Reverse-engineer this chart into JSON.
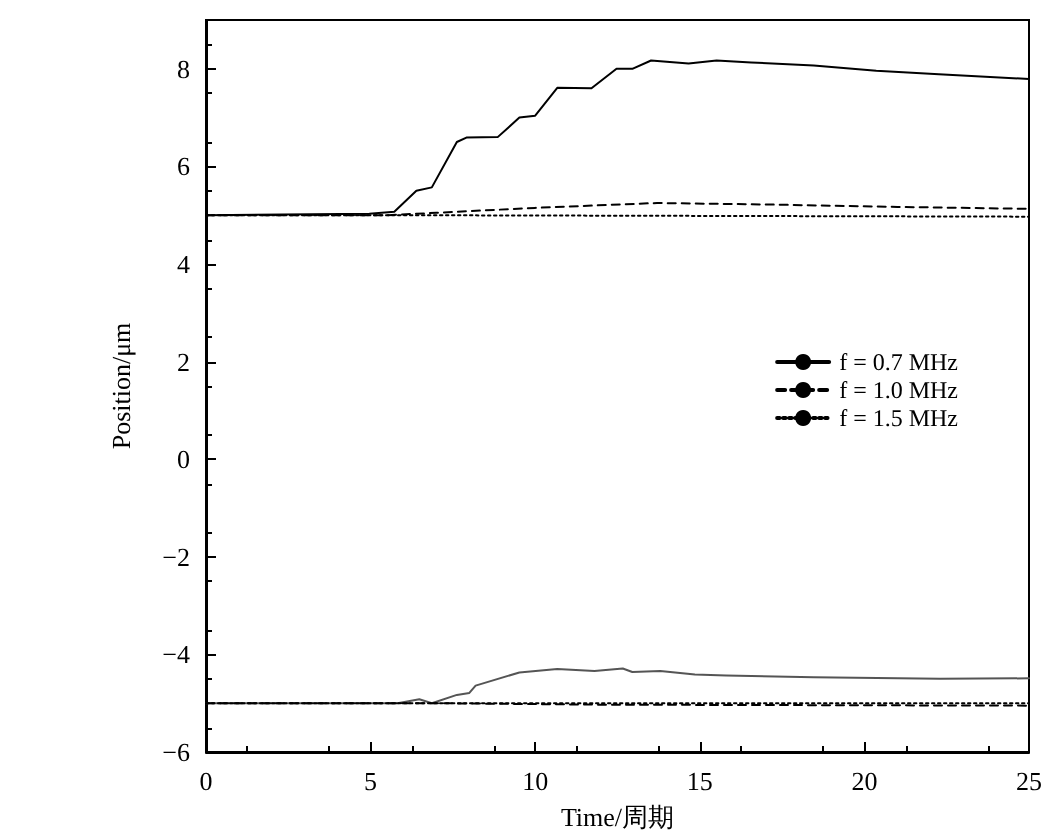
{
  "chart_data": {
    "type": "line",
    "xlabel": "Time/周期",
    "ylabel": "Position/μm",
    "xlim": [
      0,
      25
    ],
    "xticks": [
      0,
      5,
      10,
      15,
      20,
      25
    ],
    "ylim": [
      -6,
      9
    ],
    "yticks": [
      {
        "value": -6,
        "label": "−6"
      },
      {
        "value": -4,
        "label": "−4"
      },
      {
        "value": -2,
        "label": "−2"
      },
      0,
      2,
      4,
      6,
      8
    ],
    "legend": "right",
    "marker": "none",
    "grid": false,
    "series": [
      {
        "name": "f = 0.7 MHz",
        "color": "#000000",
        "line_style": "solid",
        "x": [
          0,
          4.96,
          5.72,
          6.39,
          6.86,
          7.62,
          7.91,
          8.86,
          9.52,
          10.0,
          10.67,
          11.71,
          12.47,
          12.95,
          13.52,
          14.66,
          15.51,
          16.56,
          18.46,
          20.36,
          22.26,
          25
        ],
        "values": [
          5,
          5.03,
          5.07,
          5.5,
          5.57,
          6.5,
          6.59,
          6.6,
          7.0,
          7.04,
          7.61,
          7.6,
          8.0,
          8.0,
          8.17,
          8.11,
          8.17,
          8.13,
          8.07,
          7.96,
          7.89,
          7.79
        ]
      },
      {
        "name": "f = 1.0 MHz",
        "color": "#000000",
        "line_style": "dashed",
        "x": [
          0,
          5.5,
          7,
          10,
          13.7,
          17,
          21,
          25
        ],
        "values": [
          5,
          5.0,
          5.05,
          5.15,
          5.25,
          5.22,
          5.17,
          5.13
        ]
      },
      {
        "name": "f = 1.5 MHz",
        "color": "#000000",
        "line_style": "dotted",
        "x": [
          0,
          6,
          25
        ],
        "values": [
          5,
          5,
          4.97
        ]
      },
      {
        "color": "#555555",
        "line_style": "solid",
        "x": [
          0,
          5.82,
          6.48,
          6.86,
          7.62,
          8.0,
          8.19,
          9.52,
          10.67,
          11.8,
          12.66,
          12.95,
          13.8,
          14.85,
          15.8,
          18.46,
          22.3,
          25
        ],
        "values": [
          -5,
          -5,
          -4.92,
          -5.0,
          -4.83,
          -4.79,
          -4.64,
          -4.37,
          -4.3,
          -4.34,
          -4.29,
          -4.36,
          -4.34,
          -4.41,
          -4.43,
          -4.47,
          -4.5,
          -4.49
        ]
      },
      {
        "color": "#000000",
        "line_style": "dashed",
        "x": [
          0,
          7,
          12,
          25
        ],
        "values": [
          -5,
          -5.0,
          -5.03,
          -5.05
        ]
      },
      {
        "color": "#000000",
        "line_style": "dotted",
        "x": [
          0,
          25
        ],
        "values": [
          -5,
          -5
        ]
      }
    ]
  }
}
